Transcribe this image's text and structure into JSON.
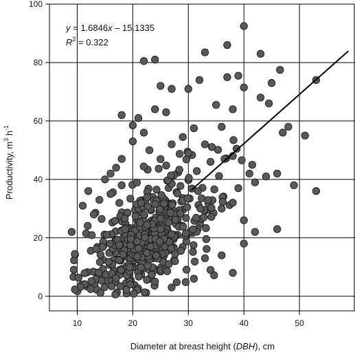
{
  "chart_data": {
    "type": "scatter",
    "xlabel": {
      "prefix": "Diameter at breast height (",
      "italic": "DBH",
      "suffix": "), cm"
    },
    "ylabel": {
      "main": "Productivity, m",
      "sup1": "3",
      "mid": " h",
      "sup2": "-1"
    },
    "xlim": [
      5,
      60
    ],
    "ylim": [
      -5,
      100
    ],
    "x_ticks": [
      10,
      20,
      30,
      40,
      50
    ],
    "y_ticks": [
      0,
      20,
      40,
      60,
      80,
      100
    ],
    "grid": true,
    "point_color": "#595959",
    "point_edge_color": "#1a1a1a",
    "line_color": "#000000",
    "equation": {
      "y_var": "y",
      "rhs_a": " = 1.6846",
      "x_var": "x",
      "rhs_b": " – 15.1335"
    },
    "r_squared": {
      "r": "R",
      "sup": "2",
      "rest": " = 0.322"
    },
    "trendline": {
      "slope": 1.6846,
      "intercept": -15.1335,
      "x_start": 30.5,
      "x_end": 58.8
    },
    "cluster": {
      "n": 480,
      "x_min": 9,
      "x_max": 40,
      "x_peak": 23,
      "slope": 1.05,
      "intercept": -3.0,
      "spread": 6.5
    },
    "outliers": [
      [
        40,
        92.5
      ],
      [
        33,
        83.5
      ],
      [
        37,
        86
      ],
      [
        43,
        83
      ],
      [
        22,
        80.5
      ],
      [
        24,
        81
      ],
      [
        46.5,
        77.5
      ],
      [
        39,
        75.5
      ],
      [
        37,
        75
      ],
      [
        45,
        73
      ],
      [
        32,
        74
      ],
      [
        40,
        71.5
      ],
      [
        30,
        71
      ],
      [
        27,
        71
      ],
      [
        25,
        72
      ],
      [
        43,
        68
      ],
      [
        35,
        65.5
      ],
      [
        44.5,
        66
      ],
      [
        38,
        64
      ],
      [
        21,
        61
      ],
      [
        18,
        62
      ],
      [
        26,
        63
      ],
      [
        24,
        64
      ],
      [
        20,
        58.5
      ],
      [
        22,
        56
      ],
      [
        47,
        56
      ],
      [
        48,
        58
      ],
      [
        51,
        55
      ],
      [
        31,
        57.5
      ],
      [
        36,
        58
      ],
      [
        29,
        54.5
      ],
      [
        33,
        52
      ],
      [
        38,
        48
      ],
      [
        53,
        74
      ],
      [
        41,
        42
      ],
      [
        44,
        41
      ],
      [
        46,
        42
      ],
      [
        49,
        38
      ],
      [
        42,
        39
      ],
      [
        53,
        36
      ],
      [
        46,
        23
      ],
      [
        17,
        44
      ],
      [
        23,
        50
      ],
      [
        27,
        52
      ],
      [
        30,
        49
      ],
      [
        20,
        53
      ],
      [
        34,
        46
      ],
      [
        39,
        37
      ],
      [
        11,
        31
      ],
      [
        12,
        36
      ],
      [
        14,
        33
      ],
      [
        9,
        22
      ],
      [
        13,
        28
      ],
      [
        15,
        40
      ],
      [
        16,
        42
      ],
      [
        18,
        38
      ],
      [
        36,
        30
      ],
      [
        38,
        32
      ],
      [
        40,
        26
      ],
      [
        42,
        22
      ],
      [
        34,
        9
      ],
      [
        31,
        6
      ],
      [
        27,
        3
      ],
      [
        24,
        5
      ],
      [
        36,
        14
      ],
      [
        38,
        8
      ],
      [
        33,
        13
      ],
      [
        40,
        18
      ],
      [
        41.5,
        45
      ],
      [
        36.5,
        47
      ],
      [
        18,
        47
      ],
      [
        16,
        35
      ]
    ]
  }
}
